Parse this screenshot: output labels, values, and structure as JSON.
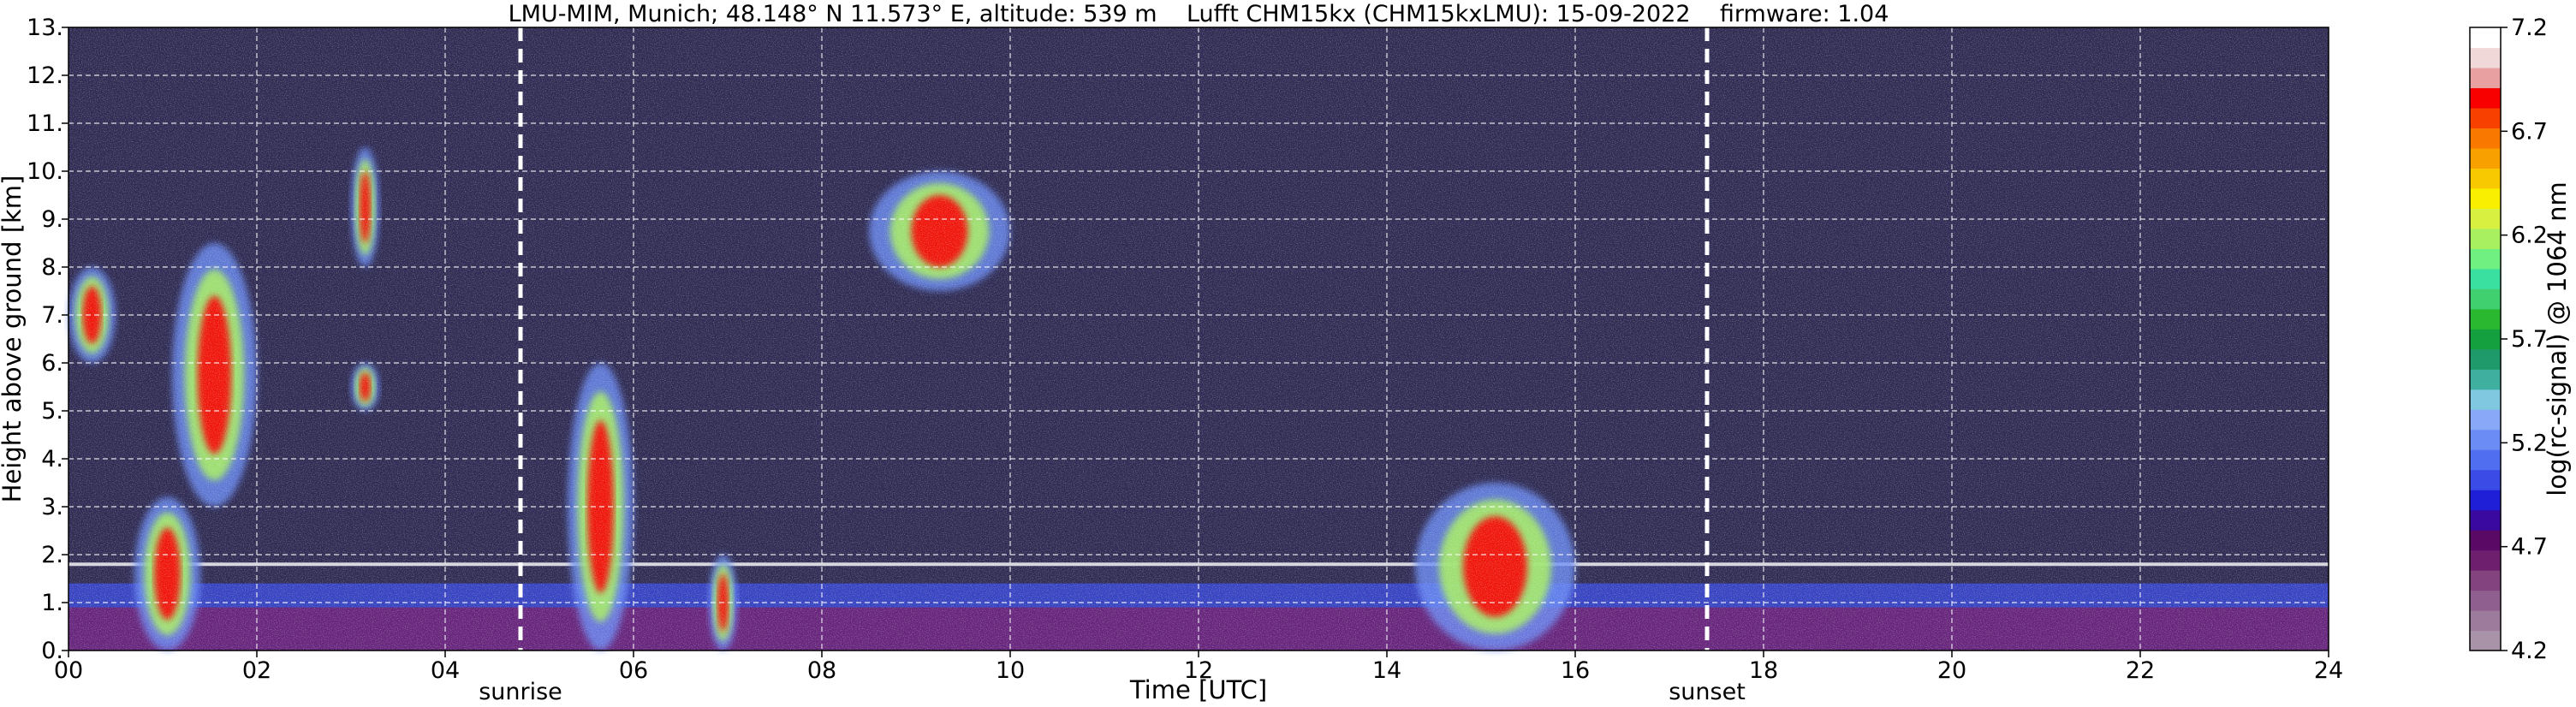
{
  "chart_data": {
    "type": "heatmap",
    "title": "LMU-MIM, Munich; 48.148° N 11.573° E, altitude: 539 m    Lufft CHM15kx (CHM15kxLMU): 15-09-2022    firmware: 1.04",
    "xlabel": "Time [UTC]",
    "ylabel": "Height above ground [km]",
    "xlim": [
      0,
      24
    ],
    "ylim": [
      0,
      13
    ],
    "x_ticks": [
      "00",
      "02",
      "04",
      "06",
      "08",
      "10",
      "12",
      "14",
      "16",
      "18",
      "20",
      "22",
      "24"
    ],
    "y_ticks": [
      "0.",
      "1.",
      "2.",
      "3.",
      "4.",
      "5.",
      "6.",
      "7.",
      "8.",
      "9.",
      "10.",
      "11.",
      "12.",
      "13."
    ],
    "grid": true,
    "grid_style": "dashed-white",
    "markers": [
      {
        "label": "sunrise",
        "x": 4.8
      },
      {
        "label": "sunset",
        "x": 17.4
      }
    ],
    "colorbar": {
      "label": "log(rc-signal) @ 1064 nm",
      "range": [
        4.2,
        7.2
      ],
      "ticks": [
        "4.2",
        "4.7",
        "5.2",
        "5.7",
        "6.2",
        "6.7",
        "7.2"
      ],
      "colors": [
        "#a893a8",
        "#9c7b9c",
        "#8f5f8f",
        "#82437f",
        "#6e1f6e",
        "#5a0a64",
        "#3a0aa0",
        "#1f1fd8",
        "#3a4be6",
        "#4f6ff0",
        "#6b8cf5",
        "#8aa8f8",
        "#7fc8e0",
        "#3fb0a0",
        "#1f9a6a",
        "#15a040",
        "#2ab830",
        "#40d070",
        "#3ae0a0",
        "#70f080",
        "#a8f060",
        "#d8f040",
        "#f8f000",
        "#f8c800",
        "#f8a000",
        "#f87800",
        "#f84000",
        "#f80000",
        "#e8a0a0",
        "#f0d8d8",
        "#ffffff"
      ]
    },
    "background_color": "#2e2a52",
    "features": [
      {
        "kind": "boundary-layer",
        "x": [
          0,
          24
        ],
        "y_top_km": [
          1.4,
          1.8
        ]
      },
      {
        "kind": "cloud",
        "x": [
          0.7,
          1.4
        ],
        "y_km": [
          0,
          3.2
        ]
      },
      {
        "kind": "cloud",
        "x": [
          1.1,
          2.0
        ],
        "y_km": [
          3.0,
          8.5
        ]
      },
      {
        "kind": "cloud",
        "x": [
          3.0,
          3.3
        ],
        "y_km": [
          8.0,
          10.5
        ]
      },
      {
        "kind": "cloud",
        "x": [
          3.0,
          3.3
        ],
        "y_km": [
          5.0,
          6.0
        ]
      },
      {
        "kind": "cloud",
        "x": [
          5.3,
          6.0
        ],
        "y_km": [
          0,
          6.0
        ]
      },
      {
        "kind": "cloud",
        "x": [
          6.8,
          7.1
        ],
        "y_km": [
          0,
          2.0
        ]
      },
      {
        "kind": "cloud",
        "x": [
          8.5,
          10.0
        ],
        "y_km": [
          7.5,
          10.0
        ]
      },
      {
        "kind": "cloud",
        "x": [
          14.3,
          16.0
        ],
        "y_km": [
          0,
          3.5
        ]
      },
      {
        "kind": "cloud",
        "x": [
          0,
          0.5
        ],
        "y_km": [
          6.0,
          8.0
        ]
      }
    ]
  }
}
